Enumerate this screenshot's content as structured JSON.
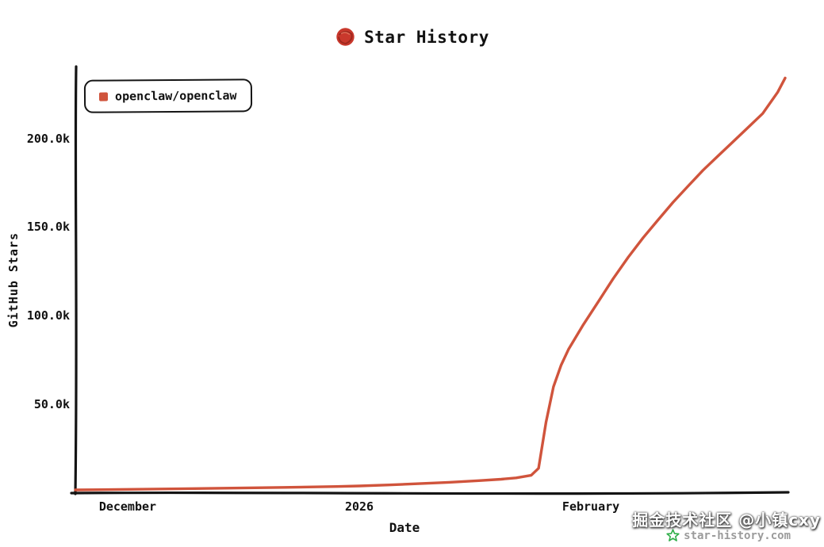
{
  "colors": {
    "line_red": "#d0543c",
    "logo_red": "#c9382c",
    "logo_scribble": "#8f2118",
    "brand_green": "#2fae49",
    "axis_black": "#141414",
    "overlay_white": "#ffffff"
  },
  "watermark": {
    "brand": "star-history.com",
    "overlay": "掘金技术社区 @小镇cxy"
  },
  "chart_data": {
    "type": "line",
    "title": "Star History",
    "xlabel": "Date",
    "ylabel": "GitHub Stars",
    "grid": false,
    "legend_position": "top-left",
    "x_domain": [
      "2025-11-24",
      "2026-02-27"
    ],
    "y_domain": [
      0,
      240000
    ],
    "y_ticks": [
      {
        "value": 50000,
        "label": "50.0k"
      },
      {
        "value": 100000,
        "label": "100.0k"
      },
      {
        "value": 150000,
        "label": "150.0k"
      },
      {
        "value": 200000,
        "label": "200.0k"
      }
    ],
    "x_ticks": [
      {
        "date": "2025-12-01",
        "label": "December"
      },
      {
        "date": "2026-01-01",
        "label": "2026"
      },
      {
        "date": "2026-02-01",
        "label": "February"
      }
    ],
    "series": [
      {
        "name": "openclaw/openclaw",
        "color": "#d0543c",
        "points": [
          [
            "2025-11-24",
            1800
          ],
          [
            "2025-12-01",
            2100
          ],
          [
            "2025-12-08",
            2400
          ],
          [
            "2025-12-15",
            2800
          ],
          [
            "2025-12-22",
            3200
          ],
          [
            "2025-12-29",
            3700
          ],
          [
            "2026-01-01",
            4000
          ],
          [
            "2026-01-05",
            4600
          ],
          [
            "2026-01-09",
            5300
          ],
          [
            "2026-01-13",
            6100
          ],
          [
            "2026-01-17",
            7000
          ],
          [
            "2026-01-20",
            7800
          ],
          [
            "2026-01-22",
            8600
          ],
          [
            "2026-01-24",
            10000
          ],
          [
            "2026-01-25",
            14000
          ],
          [
            "2026-01-26",
            40000
          ],
          [
            "2026-01-27",
            60000
          ],
          [
            "2026-01-28",
            72000
          ],
          [
            "2026-01-29",
            81000
          ],
          [
            "2026-01-31",
            95000
          ],
          [
            "2026-02-02",
            108000
          ],
          [
            "2026-02-04",
            121000
          ],
          [
            "2026-02-06",
            133000
          ],
          [
            "2026-02-08",
            144000
          ],
          [
            "2026-02-10",
            154000
          ],
          [
            "2026-02-12",
            164000
          ],
          [
            "2026-02-14",
            173000
          ],
          [
            "2026-02-16",
            182000
          ],
          [
            "2026-02-18",
            190000
          ],
          [
            "2026-02-20",
            198000
          ],
          [
            "2026-02-22",
            206000
          ],
          [
            "2026-02-24",
            214000
          ],
          [
            "2026-02-26",
            226000
          ],
          [
            "2026-02-27",
            234000
          ]
        ]
      }
    ]
  }
}
